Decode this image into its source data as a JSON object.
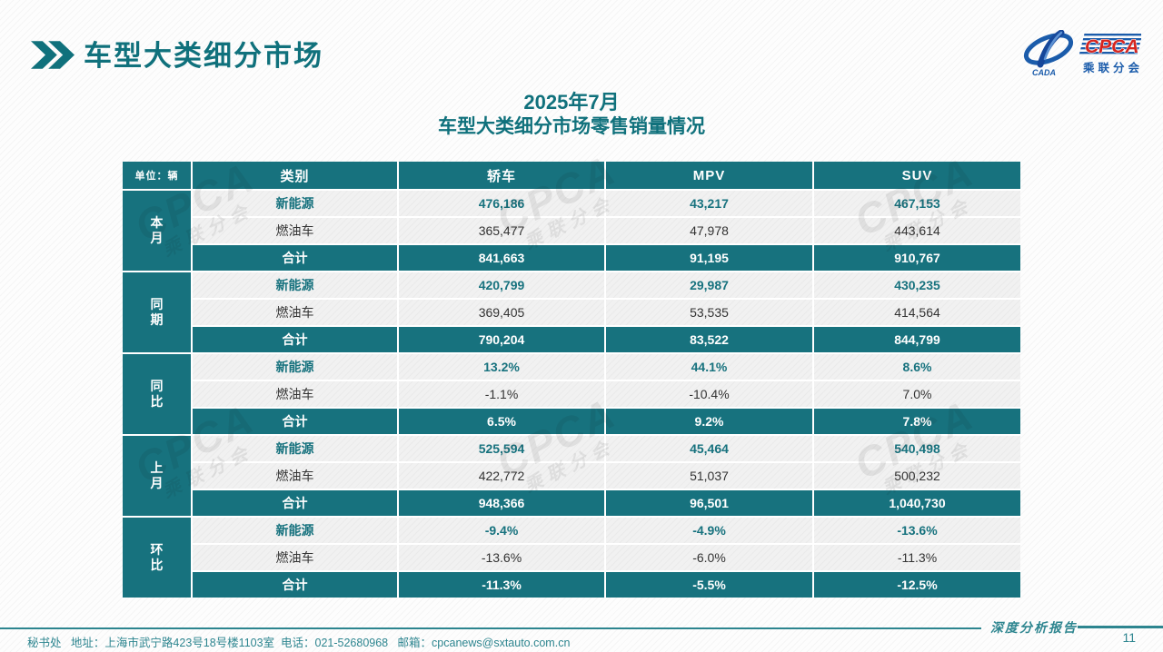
{
  "page": {
    "title": "车型大类细分市场",
    "subtitle_line1": "2025年7月",
    "subtitle_line2": "车型大类细分市场零售销量情况",
    "footer_info": "秘书处   地址：上海市武宁路423号18号楼1103室  电话：021-52680968   邮箱：cpcanews@sxtauto.com.cn",
    "report_label": "深度分析报告",
    "page_number": "11"
  },
  "logo": {
    "cpca": "CPCA",
    "sub_name": "乘联分会",
    "cada": "CADA"
  },
  "watermark": {
    "line1": "CPCA",
    "line2": "乘联分会"
  },
  "colors": {
    "accent_teal": "#17727E",
    "title_teal": "#10717C",
    "footer_teal": "#2D858F",
    "logo_blue": "#1B5CAB",
    "logo_red": "#D6251F",
    "row_bg": "#F1F1F1",
    "fuel_text": "#333333"
  },
  "table": {
    "unit_label": "单位：辆",
    "columns": [
      "类别",
      "轿车",
      "MPV",
      "SUV"
    ],
    "groups": [
      {
        "label": "本月",
        "rows": [
          {
            "category": "新能源",
            "values": [
              "476,186",
              "43,217",
              "467,153"
            ]
          },
          {
            "category": "燃油车",
            "values": [
              "365,477",
              "47,978",
              "443,614"
            ]
          },
          {
            "category": "合计",
            "values": [
              "841,663",
              "91,195",
              "910,767"
            ]
          }
        ]
      },
      {
        "label": "同期",
        "rows": [
          {
            "category": "新能源",
            "values": [
              "420,799",
              "29,987",
              "430,235"
            ]
          },
          {
            "category": "燃油车",
            "values": [
              "369,405",
              "53,535",
              "414,564"
            ]
          },
          {
            "category": "合计",
            "values": [
              "790,204",
              "83,522",
              "844,799"
            ]
          }
        ]
      },
      {
        "label": "同比",
        "rows": [
          {
            "category": "新能源",
            "values": [
              "13.2%",
              "44.1%",
              "8.6%"
            ]
          },
          {
            "category": "燃油车",
            "values": [
              "-1.1%",
              "-10.4%",
              "7.0%"
            ]
          },
          {
            "category": "合计",
            "values": [
              "6.5%",
              "9.2%",
              "7.8%"
            ]
          }
        ]
      },
      {
        "label": "上月",
        "rows": [
          {
            "category": "新能源",
            "values": [
              "525,594",
              "45,464",
              "540,498"
            ]
          },
          {
            "category": "燃油车",
            "values": [
              "422,772",
              "51,037",
              "500,232"
            ]
          },
          {
            "category": "合计",
            "values": [
              "948,366",
              "96,501",
              "1,040,730"
            ]
          }
        ]
      },
      {
        "label": "环比",
        "rows": [
          {
            "category": "新能源",
            "values": [
              "-9.4%",
              "-4.9%",
              "-13.6%"
            ]
          },
          {
            "category": "燃油车",
            "values": [
              "-13.6%",
              "-6.0%",
              "-11.3%"
            ]
          },
          {
            "category": "合计",
            "values": [
              "-11.3%",
              "-5.5%",
              "-12.5%"
            ]
          }
        ]
      }
    ]
  }
}
